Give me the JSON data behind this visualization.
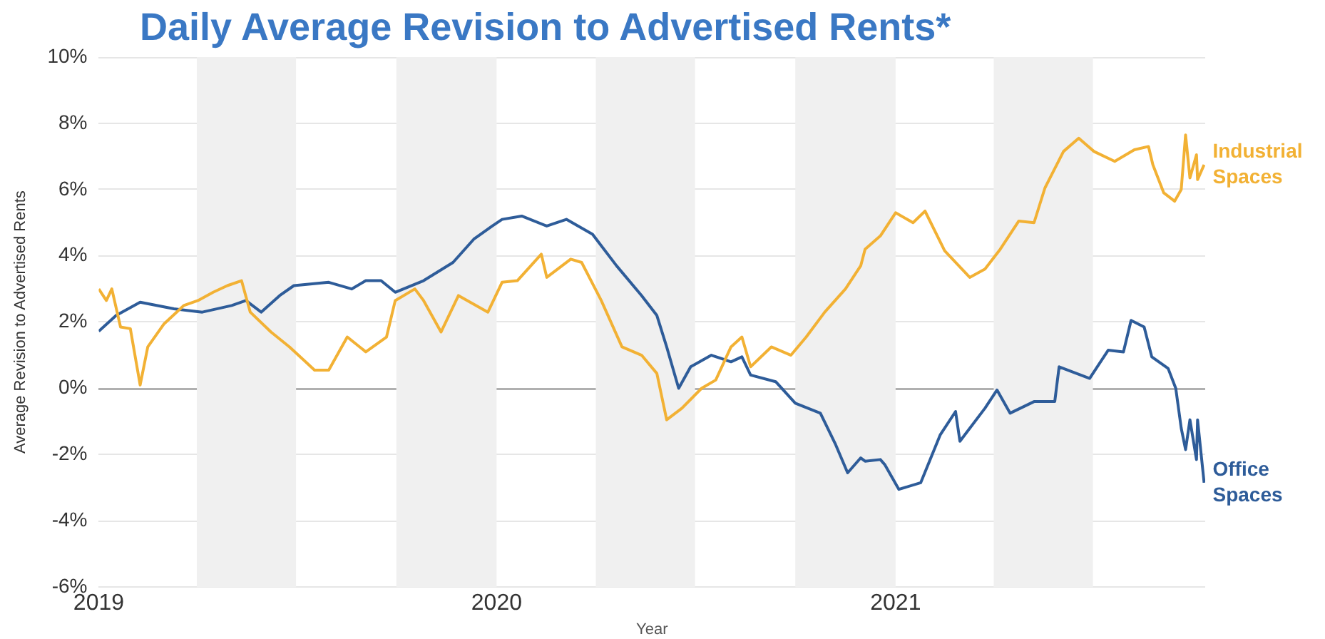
{
  "chart_data": {
    "type": "line",
    "title": "Daily Average Revision to Advertised Rents*",
    "xlabel": "Year",
    "ylabel": "Average Revision to Advertised Rents",
    "xlim": [
      "2019-01-01",
      "2021-10-12"
    ],
    "xticks": [
      {
        "value": "2019-01-01",
        "label": "2019"
      },
      {
        "value": "2020-01-01",
        "label": "2020"
      },
      {
        "value": "2021-01-01",
        "label": "2021"
      }
    ],
    "ylim": [
      -6,
      10
    ],
    "yticks": [
      {
        "value": -6,
        "label": "-6%"
      },
      {
        "value": -4,
        "label": "-4%"
      },
      {
        "value": -2,
        "label": "-2%"
      },
      {
        "value": 0,
        "label": "0%"
      },
      {
        "value": 2,
        "label": "2%"
      },
      {
        "value": 4,
        "label": "4%"
      },
      {
        "value": 6,
        "label": "6%"
      },
      {
        "value": 8,
        "label": "8%"
      },
      {
        "value": 10,
        "label": "10%"
      }
    ],
    "grid": "y",
    "legend": false,
    "marker": "none",
    "line_style": "solid",
    "bands": [
      {
        "axis": "x",
        "from": "2019-04-01",
        "to": "2019-07-01",
        "color": "#f0f0f0"
      },
      {
        "axis": "x",
        "from": "2019-10-01",
        "to": "2020-01-01",
        "color": "#f0f0f0"
      },
      {
        "axis": "x",
        "from": "2020-04-01",
        "to": "2020-07-01",
        "color": "#f0f0f0"
      },
      {
        "axis": "x",
        "from": "2020-10-01",
        "to": "2021-01-01",
        "color": "#f0f0f0"
      },
      {
        "axis": "x",
        "from": "2021-04-01",
        "to": "2021-07-01",
        "color": "#f0f0f0"
      }
    ],
    "series": [
      {
        "name": "Industrial Spaces",
        "color": "#f2b134",
        "x": [
          "2019-01-01",
          "2019-01-08",
          "2019-01-13",
          "2019-01-21",
          "2019-01-30",
          "2019-02-08",
          "2019-02-15",
          "2019-03-02",
          "2019-03-20",
          "2019-04-02",
          "2019-04-16",
          "2019-04-29",
          "2019-05-12",
          "2019-05-20",
          "2019-06-08",
          "2019-06-25",
          "2019-07-18",
          "2019-07-31",
          "2019-08-17",
          "2019-09-03",
          "2019-09-22",
          "2019-09-30",
          "2019-10-18",
          "2019-10-26",
          "2019-11-11",
          "2019-11-27",
          "2019-12-24",
          "2020-01-06",
          "2020-01-20",
          "2020-02-11",
          "2020-02-16",
          "2020-03-09",
          "2020-03-19",
          "2020-04-06",
          "2020-04-25",
          "2020-05-13",
          "2020-05-27",
          "2020-06-05",
          "2020-06-19",
          "2020-07-07",
          "2020-07-20",
          "2020-08-03",
          "2020-08-13",
          "2020-08-21",
          "2020-09-09",
          "2020-09-27",
          "2020-10-11",
          "2020-10-28",
          "2020-11-16",
          "2020-11-30",
          "2020-12-04",
          "2020-12-18",
          "2021-01-01",
          "2021-01-17",
          "2021-01-28",
          "2021-02-15",
          "2021-03-10",
          "2021-03-24",
          "2021-04-07",
          "2021-04-24",
          "2021-05-08",
          "2021-05-18",
          "2021-06-04",
          "2021-06-18",
          "2021-07-02",
          "2021-07-21",
          "2021-08-08",
          "2021-08-21",
          "2021-08-25",
          "2021-09-04",
          "2021-09-14",
          "2021-09-20",
          "2021-09-24",
          "2021-09-28",
          "2021-10-04",
          "2021-10-05",
          "2021-10-11"
        ],
        "values": [
          3.0,
          2.65,
          3.0,
          1.85,
          1.8,
          0.1,
          1.25,
          1.95,
          2.5,
          2.65,
          2.9,
          3.1,
          3.25,
          2.3,
          1.7,
          1.25,
          0.55,
          0.55,
          1.55,
          1.1,
          1.55,
          2.65,
          3.0,
          2.65,
          1.7,
          2.8,
          2.3,
          3.2,
          3.25,
          4.05,
          3.35,
          3.9,
          3.8,
          2.65,
          1.25,
          1.0,
          0.45,
          -0.95,
          -0.6,
          0.0,
          0.25,
          1.25,
          1.55,
          0.65,
          1.25,
          1.0,
          1.55,
          2.3,
          3.0,
          3.7,
          4.2,
          4.6,
          5.3,
          5.0,
          5.35,
          4.15,
          3.35,
          3.6,
          4.2,
          5.05,
          5.0,
          6.05,
          7.15,
          7.55,
          7.15,
          6.85,
          7.2,
          7.3,
          6.75,
          5.9,
          5.65,
          6.0,
          7.65,
          6.35,
          7.05,
          6.3,
          6.75
        ]
      },
      {
        "name": "Office Spaces",
        "color": "#2e5c99",
        "x": [
          "2019-01-01",
          "2019-01-17",
          "2019-02-08",
          "2019-03-11",
          "2019-04-06",
          "2019-05-03",
          "2019-05-16",
          "2019-05-30",
          "2019-06-16",
          "2019-06-29",
          "2019-07-31",
          "2019-08-21",
          "2019-09-03",
          "2019-09-17",
          "2019-09-30",
          "2019-10-26",
          "2019-11-22",
          "2019-12-11",
          "2019-12-28",
          "2020-01-06",
          "2020-01-24",
          "2020-02-16",
          "2020-03-05",
          "2020-03-29",
          "2020-04-20",
          "2020-05-13",
          "2020-05-27",
          "2020-06-05",
          "2020-06-16",
          "2020-06-27",
          "2020-07-16",
          "2020-08-03",
          "2020-08-13",
          "2020-08-21",
          "2020-09-13",
          "2020-10-01",
          "2020-10-24",
          "2020-11-07",
          "2020-11-18",
          "2020-11-30",
          "2020-12-04",
          "2020-12-18",
          "2020-12-22",
          "2021-01-04",
          "2021-01-24",
          "2021-02-11",
          "2021-02-25",
          "2021-03-01",
          "2021-03-24",
          "2021-04-04",
          "2021-04-16",
          "2021-05-08",
          "2021-05-27",
          "2021-05-31",
          "2021-06-28",
          "2021-07-15",
          "2021-07-29",
          "2021-08-05",
          "2021-08-17",
          "2021-08-24",
          "2021-09-08",
          "2021-09-15",
          "2021-09-20",
          "2021-09-24",
          "2021-09-28",
          "2021-10-04",
          "2021-10-05",
          "2021-10-11"
        ],
        "values": [
          1.72,
          2.2,
          2.6,
          2.4,
          2.3,
          2.5,
          2.65,
          2.3,
          2.8,
          3.1,
          3.2,
          3.0,
          3.25,
          3.25,
          2.9,
          3.25,
          3.8,
          4.5,
          4.9,
          5.1,
          5.2,
          4.9,
          5.1,
          4.65,
          3.7,
          2.8,
          2.2,
          1.25,
          0.0,
          0.65,
          1.0,
          0.8,
          0.95,
          0.4,
          0.2,
          -0.45,
          -0.75,
          -1.7,
          -2.55,
          -2.1,
          -2.2,
          -2.15,
          -2.3,
          -3.05,
          -2.85,
          -1.4,
          -0.7,
          -1.6,
          -0.6,
          -0.05,
          -0.75,
          -0.4,
          -0.4,
          0.65,
          0.3,
          1.15,
          1.1,
          2.05,
          1.85,
          0.95,
          0.6,
          0.0,
          -1.2,
          -1.85,
          -0.95,
          -2.15,
          -0.95,
          -2.85
        ]
      }
    ]
  }
}
